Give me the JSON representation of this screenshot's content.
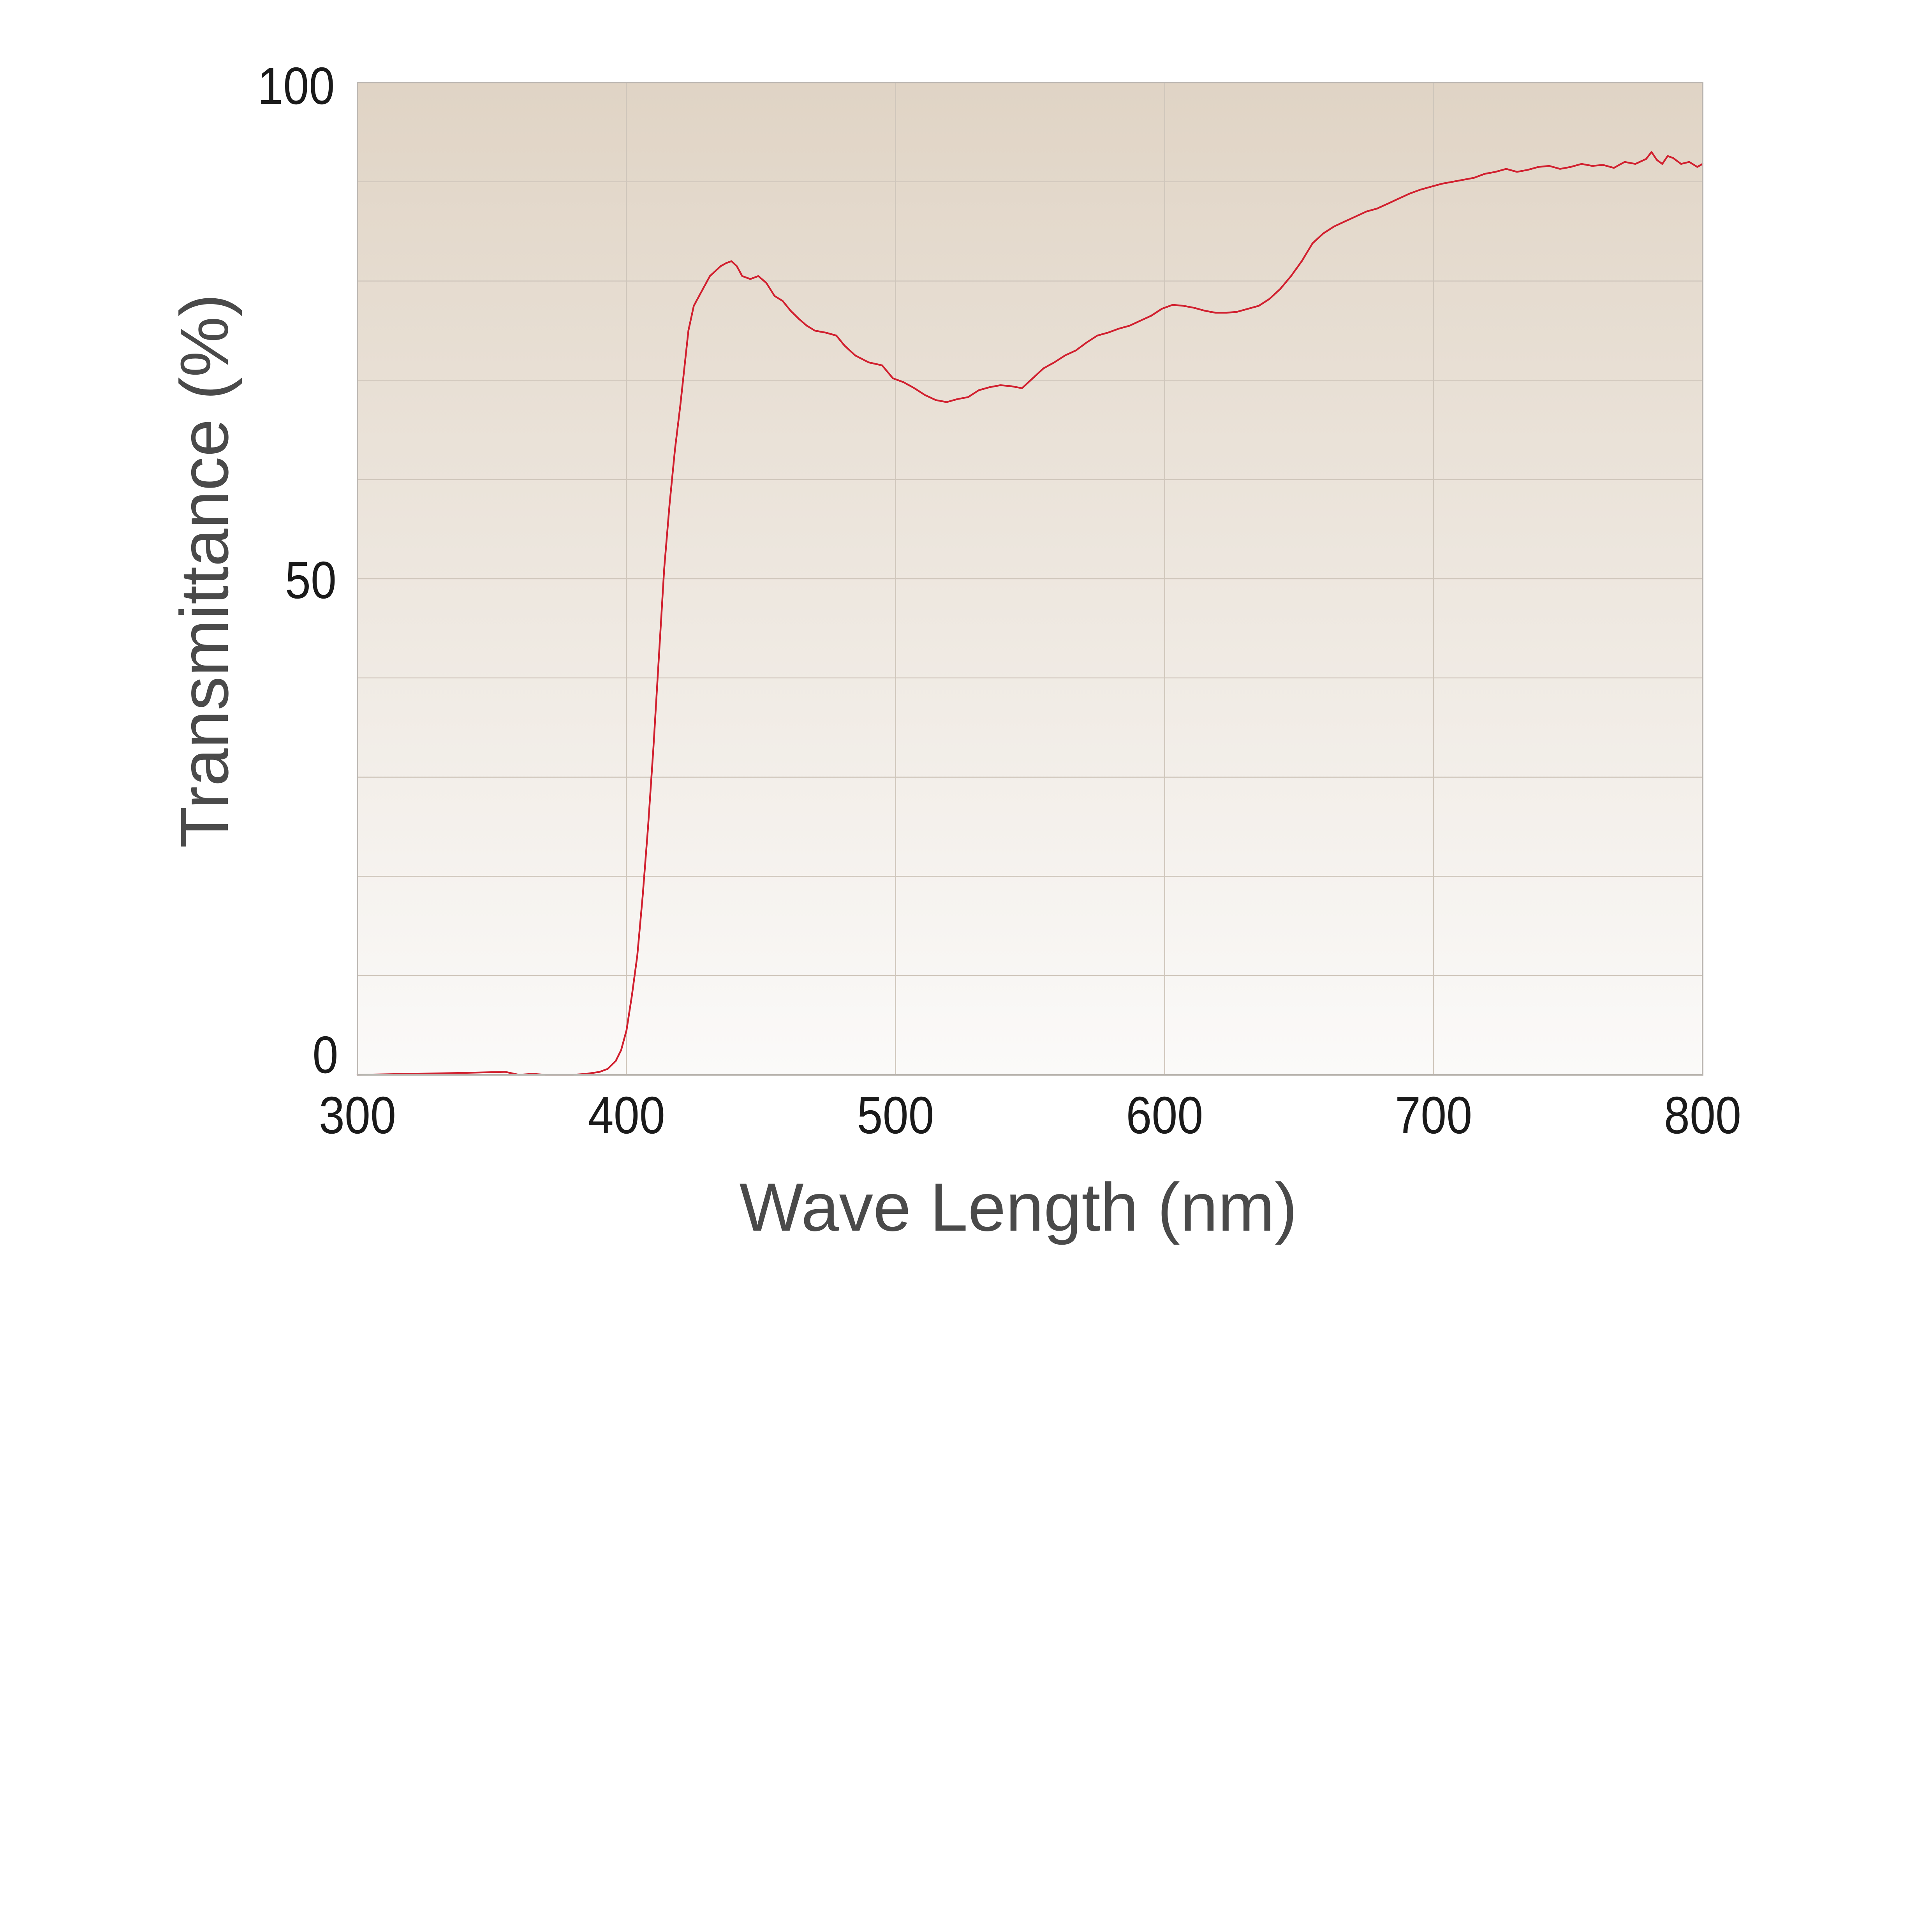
{
  "chart_data": {
    "type": "line",
    "xlabel": "Wave Length (nm)",
    "ylabel": "Transmittance (%)",
    "xlim": [
      300,
      800
    ],
    "ylim": [
      0,
      100
    ],
    "xticks": [
      300,
      400,
      500,
      600,
      700,
      800
    ],
    "xtick_labels": [
      "300",
      "400",
      "500",
      "600",
      "700",
      "800"
    ],
    "yticks": [
      0,
      50,
      100
    ],
    "ytick_labels": [
      "0",
      "50",
      "100"
    ],
    "grid": true,
    "grid_x_step": 100,
    "grid_y_step": 10,
    "legend": "none",
    "colors": {
      "line": "#d1202f",
      "plot_bg_top": "#e0d4c5",
      "plot_bg_bottom": "#fbfaf9",
      "grid": "#cfc6bb",
      "frame": "#b8b3ae"
    },
    "series": [
      {
        "points": [
          [
            300,
            0.0
          ],
          [
            340,
            0.2
          ],
          [
            355,
            0.3
          ],
          [
            360,
            0.0
          ],
          [
            365,
            0.1
          ],
          [
            370,
            0.0
          ],
          [
            380,
            0.0
          ],
          [
            385,
            0.1
          ],
          [
            390,
            0.3
          ],
          [
            393,
            0.6
          ],
          [
            396,
            1.4
          ],
          [
            398,
            2.5
          ],
          [
            400,
            4.5
          ],
          [
            402,
            8.0
          ],
          [
            404,
            12.0
          ],
          [
            406,
            18.0
          ],
          [
            408,
            25.0
          ],
          [
            410,
            33.0
          ],
          [
            412,
            42.0
          ],
          [
            414,
            51.0
          ],
          [
            416,
            57.5
          ],
          [
            418,
            63.0
          ],
          [
            420,
            67.5
          ],
          [
            421,
            70.0
          ],
          [
            423,
            75.0
          ],
          [
            425,
            77.5
          ],
          [
            427,
            78.5
          ],
          [
            429,
            79.5
          ],
          [
            431,
            80.5
          ],
          [
            433,
            81.0
          ],
          [
            435,
            81.5
          ],
          [
            437,
            81.8
          ],
          [
            439,
            82.0
          ],
          [
            441,
            81.5
          ],
          [
            443,
            80.5
          ],
          [
            446,
            80.2
          ],
          [
            449,
            80.5
          ],
          [
            452,
            79.8
          ],
          [
            455,
            78.5
          ],
          [
            458,
            78.0
          ],
          [
            461,
            77.0
          ],
          [
            464,
            76.2
          ],
          [
            467,
            75.5
          ],
          [
            470,
            75.0
          ],
          [
            474,
            74.8
          ],
          [
            478,
            74.5
          ],
          [
            481,
            73.5
          ],
          [
            485,
            72.5
          ],
          [
            490,
            71.8
          ],
          [
            495,
            71.5
          ],
          [
            499,
            70.2
          ],
          [
            503,
            69.8
          ],
          [
            507,
            69.2
          ],
          [
            511,
            68.5
          ],
          [
            515,
            68.0
          ],
          [
            519,
            67.8
          ],
          [
            523,
            68.1
          ],
          [
            527,
            68.3
          ],
          [
            531,
            69.0
          ],
          [
            535,
            69.3
          ],
          [
            539,
            69.5
          ],
          [
            543,
            69.4
          ],
          [
            547,
            69.2
          ],
          [
            551,
            70.2
          ],
          [
            555,
            71.2
          ],
          [
            559,
            71.8
          ],
          [
            563,
            72.5
          ],
          [
            567,
            73.0
          ],
          [
            571,
            73.8
          ],
          [
            575,
            74.5
          ],
          [
            579,
            74.8
          ],
          [
            583,
            75.2
          ],
          [
            587,
            75.5
          ],
          [
            591,
            76.0
          ],
          [
            595,
            76.5
          ],
          [
            599,
            77.2
          ],
          [
            603,
            77.6
          ],
          [
            607,
            77.5
          ],
          [
            611,
            77.3
          ],
          [
            615,
            77.0
          ],
          [
            619,
            76.8
          ],
          [
            623,
            76.8
          ],
          [
            627,
            76.9
          ],
          [
            631,
            77.2
          ],
          [
            635,
            77.5
          ],
          [
            639,
            78.2
          ],
          [
            643,
            79.2
          ],
          [
            647,
            80.5
          ],
          [
            651,
            82.0
          ],
          [
            655,
            83.8
          ],
          [
            659,
            84.8
          ],
          [
            663,
            85.5
          ],
          [
            667,
            86.0
          ],
          [
            671,
            86.5
          ],
          [
            675,
            87.0
          ],
          [
            679,
            87.3
          ],
          [
            683,
            87.8
          ],
          [
            687,
            88.3
          ],
          [
            691,
            88.8
          ],
          [
            695,
            89.2
          ],
          [
            699,
            89.5
          ],
          [
            703,
            89.8
          ],
          [
            707,
            90.0
          ],
          [
            711,
            90.2
          ],
          [
            715,
            90.4
          ],
          [
            719,
            90.8
          ],
          [
            723,
            91.0
          ],
          [
            727,
            91.3
          ],
          [
            731,
            91.0
          ],
          [
            735,
            91.2
          ],
          [
            739,
            91.5
          ],
          [
            743,
            91.6
          ],
          [
            747,
            91.3
          ],
          [
            751,
            91.5
          ],
          [
            755,
            91.8
          ],
          [
            759,
            91.6
          ],
          [
            763,
            91.7
          ],
          [
            767,
            91.4
          ],
          [
            771,
            92.0
          ],
          [
            775,
            91.8
          ],
          [
            779,
            92.3
          ],
          [
            781,
            93.0
          ],
          [
            783,
            92.2
          ],
          [
            785,
            91.8
          ],
          [
            787,
            92.6
          ],
          [
            789,
            92.4
          ],
          [
            792,
            91.8
          ],
          [
            795,
            92.0
          ],
          [
            798,
            91.5
          ],
          [
            800,
            91.8
          ]
        ]
      }
    ]
  }
}
